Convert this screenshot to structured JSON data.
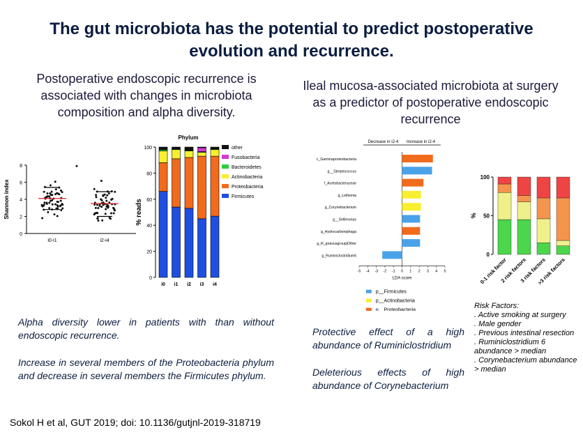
{
  "title": {
    "line1": "The gut microbiota has the potential to predict postoperative",
    "line2": "evolution and recurrence."
  },
  "left_heading": {
    "line1": "Postoperative endoscopic recurrence is",
    "line2": "associated with changes in microbiota",
    "line3": "composition and alpha diversity."
  },
  "right_heading": {
    "line1": "Ileal mucosa-associated microbiota at surgery",
    "line2": "as a predictor of postoperative endoscopic",
    "line3": "recurrence"
  },
  "text_blocks": {
    "alpha": "Alpha diversity lower in patients with than without endoscopic recurrence.",
    "increase": "Increase in several members of the Proteobacteria phylum and decrease in several members the Firmicutes phylum.",
    "protective": "Protective effect of a high abundance of Ruminiclostridium",
    "deleterious": "Deleterious effects of high abundance of Corynebacterium"
  },
  "risk_factors": {
    "title": "Risk Factors:",
    "items": [
      ". Active smoking at surgery",
      ". Male gender",
      ". Previous intestinal resection",
      ". Ruminiclostridium 6 abundance > median",
      ". Corynebacterium abundance > median"
    ]
  },
  "citation": "Sokol H et al, GUT 2019; doi: 10.1136/gutjnl-2019-318719",
  "colors": {
    "firmicutes": "#1f4fe0",
    "proteobacteria": "#f26b1d",
    "actinobacteria": "#f7ef2f",
    "bacteroidetes": "#2ecc40",
    "fusobacteria": "#d43ad4",
    "other": "#111111",
    "lda_firmicutes": "#4aa3e8",
    "lda_actino": "#f7ef2f",
    "lda_proteo": "#f26b1d",
    "rf_green": "#4cd64c",
    "rf_yellow": "#f0f08a",
    "rf_orange": "#f5944d",
    "rf_red": "#ee4444"
  },
  "chart_data": [
    {
      "type": "scatter",
      "ylabel": "Shannon index",
      "yticks": [
        0,
        2,
        4,
        6,
        8
      ],
      "ylim": [
        0,
        8
      ],
      "categories": [
        "i0-i1",
        "i2-i4"
      ],
      "means": [
        4.1,
        3.5
      ],
      "error_bars": [
        [
          2.8,
          5.4
        ],
        [
          2.0,
          4.9
        ]
      ]
    },
    {
      "type": "bar",
      "title": "Phylum",
      "ylabel": "% reads",
      "categories": [
        "i0",
        "i1",
        "i2",
        "i3",
        "i4"
      ],
      "ylim": [
        0,
        100
      ],
      "yticks": [
        0,
        20,
        40,
        60,
        80,
        100
      ],
      "series": [
        {
          "name": "Firmicutes",
          "values": [
            66,
            54,
            53,
            45,
            47
          ]
        },
        {
          "name": "Proteobacteria",
          "values": [
            22,
            37,
            39,
            48,
            46
          ]
        },
        {
          "name": "Actinobacteria",
          "values": [
            9,
            7,
            5,
            3,
            5
          ]
        },
        {
          "name": "Bacteroidetes",
          "values": [
            1,
            0.5,
            0.5,
            0.5,
            0.5
          ]
        },
        {
          "name": "Fusobacteria",
          "values": [
            0,
            0,
            0,
            3,
            0
          ]
        },
        {
          "name": "other",
          "values": [
            2,
            1.5,
            2.5,
            0.5,
            1.5
          ]
        }
      ],
      "legend": [
        "other",
        "Fusobacteria",
        "Bacteroidetes",
        "Actinobacteria",
        "Proteobacteria",
        "Firmicutes"
      ]
    },
    {
      "type": "bar",
      "orientation": "horizontal",
      "xlabel": "LDA score",
      "xlim": [
        -5,
        5
      ],
      "xticks": [
        -5,
        -4,
        -3,
        -2,
        -1,
        0,
        1,
        2,
        3,
        4,
        5
      ],
      "header_left": "Decrease in i2-4",
      "header_right": "Increase in i2-4",
      "categories": [
        "c_Gammaproteobacteria",
        "g__Streptococcus",
        "f_Acetobacteraceae",
        "g_Leifsonia",
        "g_Corynebacterium",
        "g__Sellimonas",
        "g_Hydrocarboniphaga",
        "g_R_gnavusgroup|Other",
        "g_Ruminiclostridium6"
      ],
      "values": [
        3.6,
        3.5,
        2.5,
        2.2,
        2.2,
        2.1,
        2.1,
        2.1,
        -2.3
      ],
      "groups": [
        "proteo",
        "firm",
        "proteo",
        "actino",
        "actino",
        "firm",
        "proteo",
        "firm",
        "firm"
      ],
      "legend": [
        "p__Firmicutes",
        "p__Actinobacteria",
        "p__Proteobacteria"
      ]
    },
    {
      "type": "bar",
      "stacked": true,
      "ylabel": "%",
      "ylim": [
        0,
        100
      ],
      "yticks": [
        0,
        50,
        100
      ],
      "categories": [
        "0-1 risk factor",
        "2 risk factors",
        "3 risk factors",
        ">3 risk factors"
      ],
      "series": [
        {
          "name": "green",
          "values": [
            45,
            45,
            15,
            11
          ]
        },
        {
          "name": "yellow",
          "values": [
            35,
            23,
            31,
            7
          ]
        },
        {
          "name": "orange",
          "values": [
            11,
            8,
            27,
            55
          ]
        },
        {
          "name": "red",
          "values": [
            9,
            24,
            27,
            27
          ]
        }
      ]
    }
  ]
}
